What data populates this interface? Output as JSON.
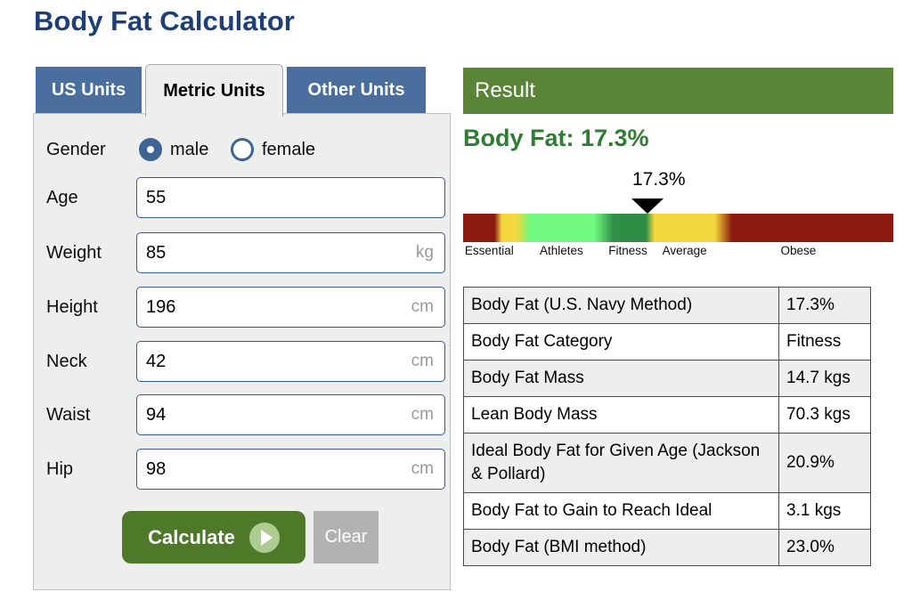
{
  "page": {
    "title": "Body Fat Calculator"
  },
  "colors": {
    "title_navy": "#1e3f76",
    "tab_blue": "#4a6e9d",
    "panel_gray": "#eeeeee",
    "input_border_blue": "#36599b",
    "radio_blue": "#3e6496",
    "calculate_green": "#4d7928",
    "clear_gray": "#b2b2b2",
    "result_header_green": "#5a8438",
    "headline_green": "#2e7d32"
  },
  "tabs": [
    {
      "label": "US Units",
      "active": false
    },
    {
      "label": "Metric Units",
      "active": true
    },
    {
      "label": "Other Units",
      "active": false
    }
  ],
  "form": {
    "gender": {
      "label": "Gender",
      "options": [
        {
          "label": "male",
          "selected": true
        },
        {
          "label": "female",
          "selected": false
        }
      ]
    },
    "fields": [
      {
        "label": "Age",
        "value": "55",
        "unit": ""
      },
      {
        "label": "Weight",
        "value": "85",
        "unit": "kg"
      },
      {
        "label": "Height",
        "value": "196",
        "unit": "cm"
      },
      {
        "label": "Neck",
        "value": "42",
        "unit": "cm"
      },
      {
        "label": "Waist",
        "value": "94",
        "unit": "cm"
      },
      {
        "label": "Hip",
        "value": "98",
        "unit": "cm"
      }
    ],
    "buttons": {
      "calculate": "Calculate",
      "clear": "Clear"
    }
  },
  "result": {
    "header": "Result",
    "headline": "Body Fat: 17.3%",
    "scale": {
      "marker_value": "17.3%",
      "marker_percent": 42.8,
      "marker_label_percent": 45.5,
      "gradient_stops": [
        {
          "color": "#8b1a10",
          "at": 0
        },
        {
          "color": "#8b1a10",
          "at": 7.3
        },
        {
          "color": "#f3d73c",
          "at": 9
        },
        {
          "color": "#f3d73c",
          "at": 12.4
        },
        {
          "color": "#72f981",
          "at": 15.5
        },
        {
          "color": "#72f981",
          "at": 30.5
        },
        {
          "color": "#2f8d46",
          "at": 35
        },
        {
          "color": "#2f8d46",
          "at": 42.5
        },
        {
          "color": "#f3d73c",
          "at": 44.5
        },
        {
          "color": "#f3d73c",
          "at": 58.5
        },
        {
          "color": "#8b1a10",
          "at": 62.5
        },
        {
          "color": "#8b1a10",
          "at": 100
        }
      ],
      "labels": [
        {
          "text": "Essential",
          "pos": 0.4
        },
        {
          "text": "Athletes",
          "pos": 17.8
        },
        {
          "text": "Fitness",
          "pos": 33.8
        },
        {
          "text": "Average",
          "pos": 46.3
        },
        {
          "text": "Obese",
          "pos": 73.8
        }
      ]
    },
    "table": {
      "rows": [
        {
          "label": "Body Fat (U.S. Navy Method)",
          "value": "17.3%"
        },
        {
          "label": "Body Fat Category",
          "value": "Fitness"
        },
        {
          "label": "Body Fat Mass",
          "value": "14.7 kgs"
        },
        {
          "label": "Lean Body Mass",
          "value": "70.3 kgs"
        },
        {
          "label": "Ideal Body Fat for Given Age (Jackson & Pollard)",
          "value": "20.9%"
        },
        {
          "label": "Body Fat to Gain to Reach Ideal",
          "value": "3.1 kgs"
        },
        {
          "label": "Body Fat (BMI method)",
          "value": "23.0%"
        }
      ]
    }
  }
}
